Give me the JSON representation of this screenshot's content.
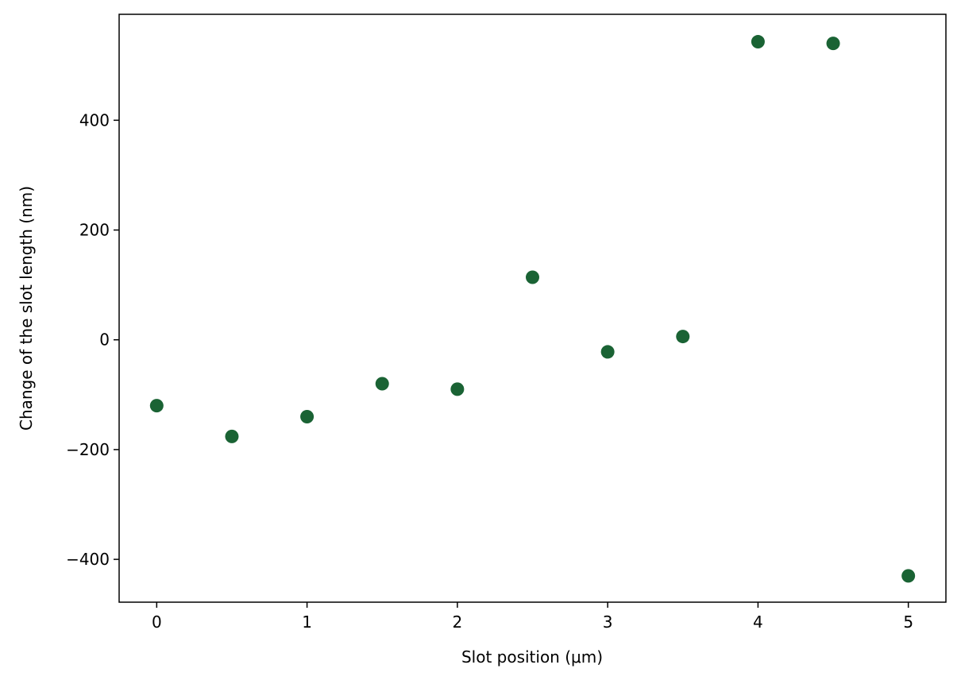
{
  "chart_data": {
    "type": "scatter",
    "x_label": "Slot position (μm)",
    "y_label": "Change of the slot length (nm)",
    "x": [
      0,
      0.5,
      1,
      1.5,
      2,
      2.5,
      3,
      3.5,
      4,
      4.5,
      5
    ],
    "values": [
      -120,
      -176,
      -140,
      -80,
      -90,
      114,
      -22,
      6,
      543,
      540,
      -430
    ],
    "color": "#1a6334",
    "xlim": [
      -0.25,
      5.25
    ],
    "ylim": [
      -478,
      593
    ],
    "xticks": [
      0,
      1,
      2,
      3,
      4,
      5
    ],
    "yticks": [
      {
        "value": -400,
        "label": "−400"
      },
      {
        "value": -200,
        "label": "−200"
      },
      0,
      200,
      400
    ],
    "grid": false
  }
}
